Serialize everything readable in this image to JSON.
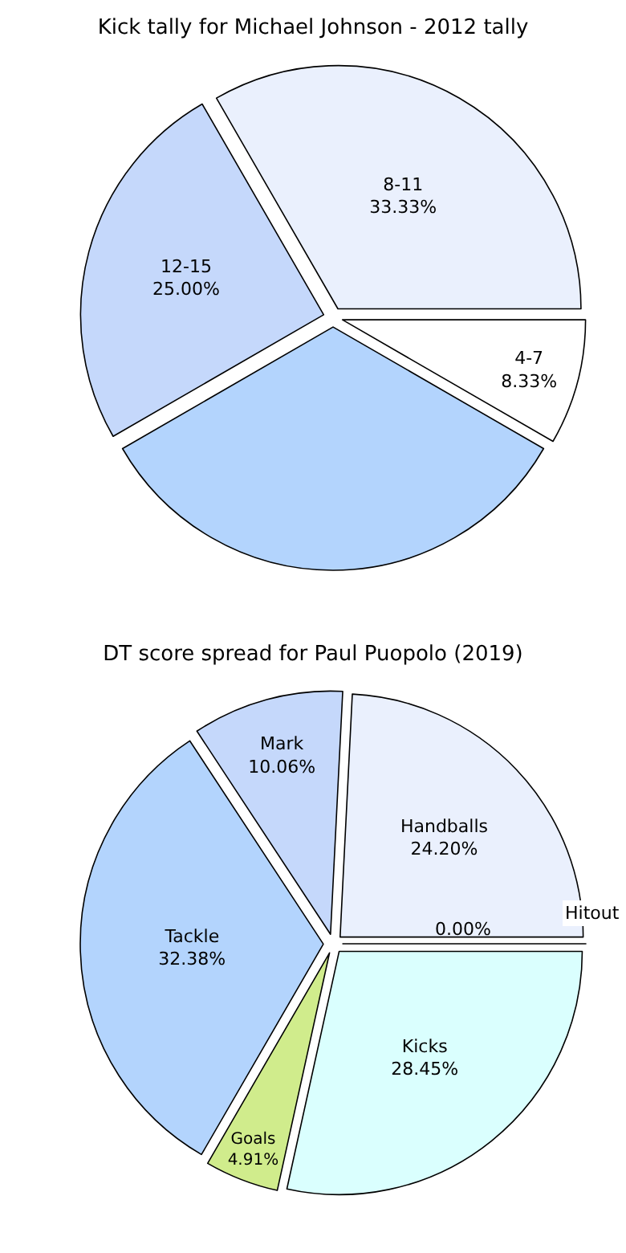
{
  "chart_data": [
    {
      "type": "pie",
      "title": "Kick tally for Michael Johnson - 2012 tally",
      "categories": [
        "4-7",
        "8-11",
        "12-15",
        null
      ],
      "values": [
        8.33,
        33.33,
        25.0,
        33.34
      ],
      "colors": [
        "#ffffff",
        "#eaf0fd",
        "#c5d8fb",
        "#b3d4fd"
      ],
      "value_labels": [
        "8.33%",
        "33.33%",
        "25.00%",
        null
      ]
    },
    {
      "type": "pie",
      "title": "DT score spread for Paul Puopolo (2019)",
      "categories": [
        "Hitout",
        "Handballs",
        "Mark",
        "Tackle",
        "Goals",
        "Kicks"
      ],
      "values": [
        0.0,
        24.2,
        10.06,
        32.38,
        4.91,
        28.45
      ],
      "colors": [
        "#ffffff",
        "#eaf0fd",
        "#c5d8fb",
        "#b3d4fd",
        "#d0ec8c",
        "#dafffe"
      ],
      "value_labels": [
        "0.00%",
        "24.20%",
        "10.06%",
        "32.38%",
        "4.91%",
        "28.45%"
      ]
    }
  ]
}
